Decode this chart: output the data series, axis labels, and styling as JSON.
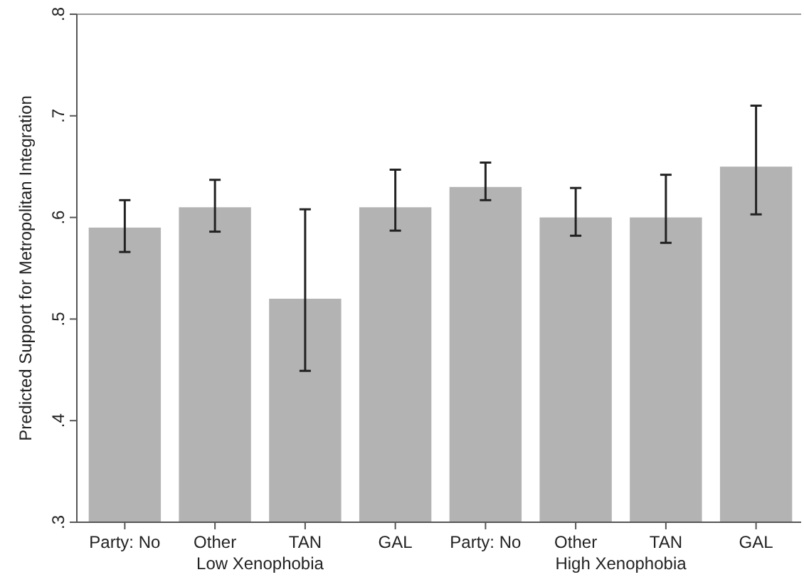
{
  "chart_data": {
    "type": "bar",
    "ylabel": "Predicted Support for Metropolitan Integration",
    "categories": [
      "Party: No",
      "Other",
      "TAN",
      "GAL",
      "Party: No",
      "Other",
      "TAN",
      "GAL"
    ],
    "values": [
      0.59,
      0.61,
      0.52,
      0.61,
      0.63,
      0.6,
      0.6,
      0.65
    ],
    "errors": [
      [
        0.566,
        0.617
      ],
      [
        0.586,
        0.637
      ],
      [
        0.449,
        0.608
      ],
      [
        0.587,
        0.647
      ],
      [
        0.617,
        0.654
      ],
      [
        0.582,
        0.629
      ],
      [
        0.575,
        0.642
      ],
      [
        0.603,
        0.71
      ]
    ],
    "color": "#b3b3b3",
    "ylim": [
      0.3,
      0.8
    ],
    "yticks": [
      {
        "value": 0.3,
        "label": ".3"
      },
      {
        "value": 0.4,
        "label": ".4"
      },
      {
        "value": 0.5,
        "label": ".5"
      },
      {
        "value": 0.6,
        "label": ".6"
      },
      {
        "value": 0.7,
        "label": ".7"
      },
      {
        "value": 0.8,
        "label": ".8"
      }
    ],
    "annotations": [
      "Low Xenophobia",
      "High Xenophobia"
    ],
    "grid": false
  }
}
